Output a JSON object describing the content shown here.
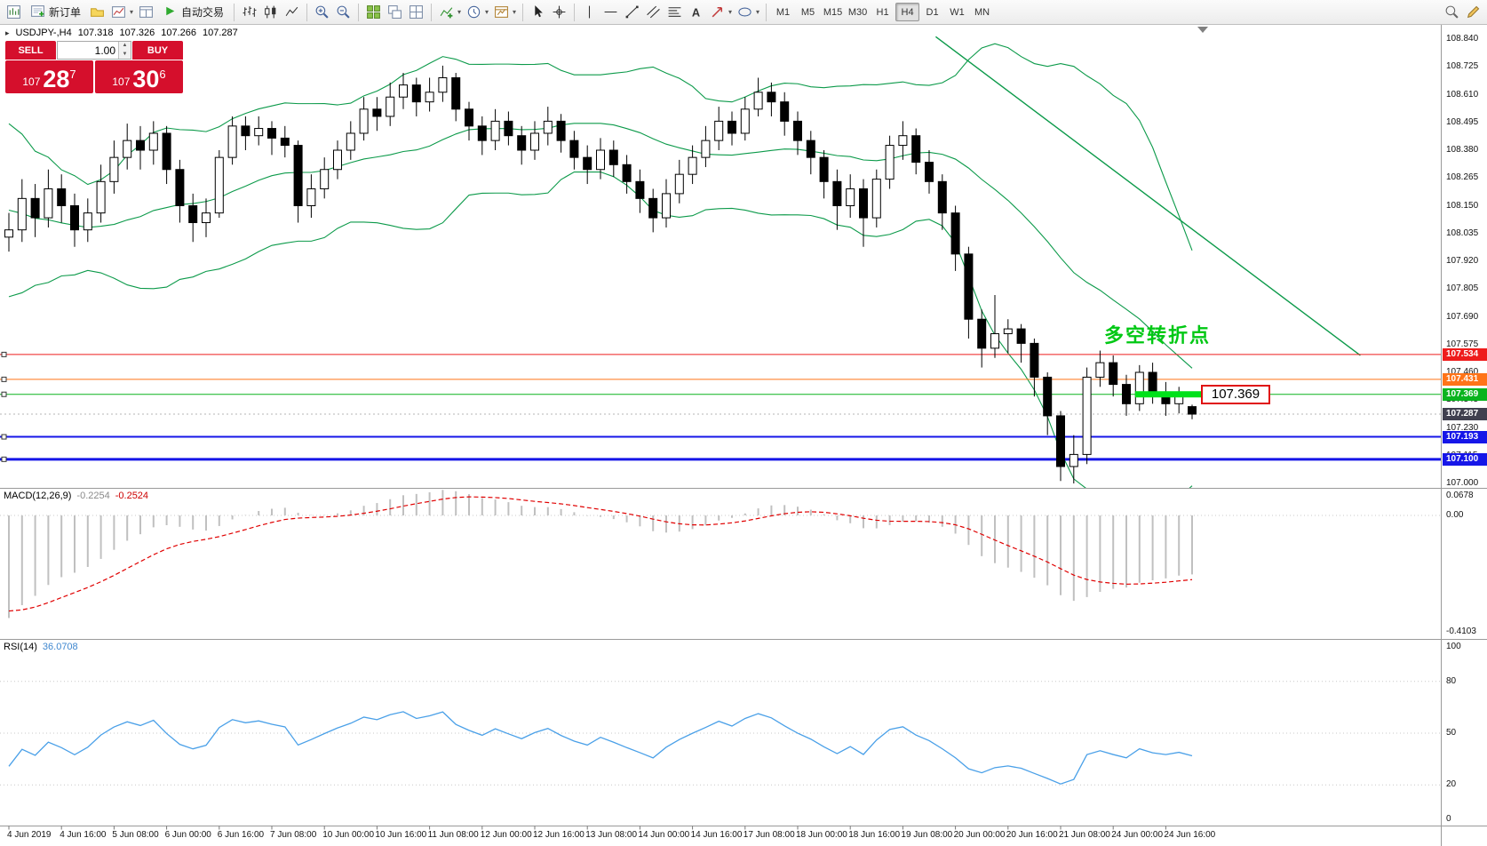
{
  "toolbar": {
    "new_order_label": "新订单",
    "auto_trading_label": "自动交易",
    "timeframes": [
      "M1",
      "M5",
      "M15",
      "M30",
      "H1",
      "H4",
      "D1",
      "W1",
      "MN"
    ],
    "active_timeframe": "H4",
    "items": [
      {
        "type": "icon",
        "name": "new-chart"
      },
      {
        "type": "button",
        "name": "new-order",
        "icon": "order-ticket",
        "label_key": "new_order_label"
      },
      {
        "type": "icon",
        "name": "profiles"
      },
      {
        "type": "icon",
        "name": "charts-window",
        "caret": true
      },
      {
        "type": "icon",
        "name": "data-window"
      },
      {
        "type": "button",
        "name": "auto-trading",
        "icon": "play",
        "label_key": "auto_trading_label"
      },
      {
        "type": "sep"
      },
      {
        "type": "icon",
        "name": "bar-chart"
      },
      {
        "type": "icon",
        "name": "candlestick-chart"
      },
      {
        "type": "icon",
        "name": "line-chart"
      },
      {
        "type": "sep"
      },
      {
        "type": "icon",
        "name": "zoom-in"
      },
      {
        "type": "icon",
        "name": "zoom-out"
      },
      {
        "type": "sep"
      },
      {
        "type": "icon",
        "name": "tile-windows"
      },
      {
        "type": "icon",
        "name": "cascade-windows"
      },
      {
        "type": "icon",
        "name": "arrange-windows"
      },
      {
        "type": "sep"
      },
      {
        "type": "icon",
        "name": "indicators",
        "caret": true
      },
      {
        "type": "icon",
        "name": "periods",
        "caret": true
      },
      {
        "type": "icon",
        "name": "templates",
        "caret": true
      },
      {
        "type": "sep"
      },
      {
        "type": "icon",
        "name": "cursor"
      },
      {
        "type": "icon",
        "name": "crosshair"
      },
      {
        "type": "sep"
      },
      {
        "type": "icon",
        "name": "vertical-line"
      },
      {
        "type": "icon",
        "name": "horizontal-line"
      },
      {
        "type": "icon",
        "name": "trendline"
      },
      {
        "type": "icon",
        "name": "equidistant-channel"
      },
      {
        "type": "icon",
        "name": "fibonacci"
      },
      {
        "type": "icon",
        "name": "text-label"
      },
      {
        "type": "icon",
        "name": "arrows",
        "caret": true
      },
      {
        "type": "icon",
        "name": "shapes",
        "caret": true
      },
      {
        "type": "sep"
      },
      {
        "type": "timeframes"
      },
      {
        "type": "spacer"
      },
      {
        "type": "icon",
        "name": "search"
      },
      {
        "type": "icon",
        "name": "edit"
      }
    ]
  },
  "trade_panel": {
    "sell_label": "SELL",
    "buy_label": "BUY",
    "volume": "1.00",
    "sell_whole": "107",
    "sell_big": "28",
    "sell_sup": "7",
    "buy_whole": "107",
    "buy_big": "30",
    "buy_sup": "6",
    "accent_color": "#d50f2c"
  },
  "symbol_info": {
    "symbol": "USDJPY-,H4",
    "open": "107.318",
    "high": "107.326",
    "low": "107.266",
    "close": "107.287"
  },
  "annotation": {
    "text": "多空转折点",
    "color": "#00c814"
  },
  "price_box_label": "107.369",
  "chart_data": {
    "type": "candlestick-ohlc",
    "symbol": "USDJPY",
    "timeframe": "H4",
    "price_axis": [
      "108.840",
      "108.725",
      "108.610",
      "108.495",
      "108.380",
      "108.265",
      "108.150",
      "108.035",
      "107.920",
      "107.805",
      "107.690",
      "107.575",
      "107.460",
      "107.345",
      "107.230",
      "107.115",
      "107.000"
    ],
    "time_labels": [
      "4 Jun 2019",
      "4 Jun 16:00",
      "5 Jun 08:00",
      "6 Jun 00:00",
      "6 Jun 16:00",
      "7 Jun 08:00",
      "10 Jun 00:00",
      "10 Jun 16:00",
      "11 Jun 08:00",
      "12 Jun 00:00",
      "12 Jun 16:00",
      "13 Jun 08:00",
      "14 Jun 00:00",
      "14 Jun 16:00",
      "17 Jun 08:00",
      "18 Jun 00:00",
      "18 Jun 16:00",
      "19 Jun 08:00",
      "20 Jun 00:00",
      "20 Jun 16:00",
      "21 Jun 08:00",
      "24 Jun 00:00",
      "24 Jun 16:00"
    ],
    "label_every": 4,
    "candles": [
      [
        108.02,
        108.12,
        107.96,
        108.05
      ],
      [
        108.05,
        108.26,
        108.0,
        108.18
      ],
      [
        108.18,
        108.24,
        108.02,
        108.1
      ],
      [
        108.1,
        108.3,
        108.06,
        108.22
      ],
      [
        108.22,
        108.28,
        108.08,
        108.15
      ],
      [
        108.15,
        108.2,
        107.98,
        108.05
      ],
      [
        108.05,
        108.18,
        108.0,
        108.12
      ],
      [
        108.12,
        108.32,
        108.08,
        108.25
      ],
      [
        108.25,
        108.42,
        108.2,
        108.35
      ],
      [
        108.35,
        108.49,
        108.3,
        108.42
      ],
      [
        108.42,
        108.48,
        108.3,
        108.38
      ],
      [
        108.38,
        108.5,
        108.32,
        108.45
      ],
      [
        108.45,
        108.48,
        108.24,
        108.3
      ],
      [
        108.3,
        108.34,
        108.08,
        108.15
      ],
      [
        108.15,
        108.2,
        108.0,
        108.08
      ],
      [
        108.08,
        108.18,
        108.02,
        108.12
      ],
      [
        108.12,
        108.38,
        108.1,
        108.35
      ],
      [
        108.35,
        108.52,
        108.32,
        108.48
      ],
      [
        108.48,
        108.52,
        108.38,
        108.44
      ],
      [
        108.44,
        108.52,
        108.4,
        108.47
      ],
      [
        108.47,
        108.5,
        108.36,
        108.43
      ],
      [
        108.43,
        108.48,
        108.35,
        108.4
      ],
      [
        108.4,
        108.42,
        108.08,
        108.15
      ],
      [
        108.15,
        108.28,
        108.1,
        108.22
      ],
      [
        108.22,
        108.35,
        108.18,
        108.3
      ],
      [
        108.3,
        108.42,
        108.26,
        108.38
      ],
      [
        108.38,
        108.5,
        108.34,
        108.45
      ],
      [
        108.45,
        108.6,
        108.42,
        108.55
      ],
      [
        108.55,
        108.6,
        108.46,
        108.52
      ],
      [
        108.52,
        108.66,
        108.48,
        108.6
      ],
      [
        108.6,
        108.7,
        108.55,
        108.65
      ],
      [
        108.65,
        108.68,
        108.52,
        108.58
      ],
      [
        108.58,
        108.68,
        108.54,
        108.62
      ],
      [
        108.62,
        108.73,
        108.58,
        108.68
      ],
      [
        108.68,
        108.7,
        108.5,
        108.55
      ],
      [
        108.55,
        108.58,
        108.42,
        108.48
      ],
      [
        108.48,
        108.52,
        108.36,
        108.42
      ],
      [
        108.42,
        108.55,
        108.38,
        108.5
      ],
      [
        108.5,
        108.54,
        108.4,
        108.44
      ],
      [
        108.44,
        108.48,
        108.32,
        108.38
      ],
      [
        108.38,
        108.5,
        108.34,
        108.45
      ],
      [
        108.45,
        108.56,
        108.4,
        108.5
      ],
      [
        108.5,
        108.53,
        108.37,
        108.42
      ],
      [
        108.42,
        108.46,
        108.3,
        108.35
      ],
      [
        108.35,
        108.4,
        108.24,
        108.3
      ],
      [
        108.3,
        108.43,
        108.26,
        108.38
      ],
      [
        108.38,
        108.42,
        108.27,
        108.32
      ],
      [
        108.32,
        108.36,
        108.2,
        108.25
      ],
      [
        108.25,
        108.3,
        108.12,
        108.18
      ],
      [
        108.18,
        108.22,
        108.04,
        108.1
      ],
      [
        108.1,
        108.26,
        108.06,
        108.2
      ],
      [
        108.2,
        108.34,
        108.16,
        108.28
      ],
      [
        108.28,
        108.4,
        108.24,
        108.35
      ],
      [
        108.35,
        108.48,
        108.31,
        108.42
      ],
      [
        108.42,
        108.56,
        108.38,
        108.5
      ],
      [
        108.5,
        108.54,
        108.4,
        108.45
      ],
      [
        108.45,
        108.6,
        108.42,
        108.55
      ],
      [
        108.55,
        108.68,
        108.52,
        108.62
      ],
      [
        108.62,
        108.66,
        108.52,
        108.58
      ],
      [
        108.58,
        108.62,
        108.44,
        108.5
      ],
      [
        108.5,
        108.54,
        108.36,
        108.42
      ],
      [
        108.42,
        108.46,
        108.28,
        108.35
      ],
      [
        108.35,
        108.38,
        108.18,
        108.25
      ],
      [
        108.25,
        108.3,
        108.05,
        108.15
      ],
      [
        108.15,
        108.28,
        108.1,
        108.22
      ],
      [
        108.22,
        108.26,
        107.98,
        108.1
      ],
      [
        108.1,
        108.3,
        108.06,
        108.26
      ],
      [
        108.26,
        108.44,
        108.22,
        108.4
      ],
      [
        108.4,
        108.5,
        108.34,
        108.44
      ],
      [
        108.44,
        108.47,
        108.28,
        108.33
      ],
      [
        108.33,
        108.38,
        108.2,
        108.25
      ],
      [
        108.25,
        108.28,
        108.05,
        108.12
      ],
      [
        108.12,
        108.15,
        107.88,
        107.95
      ],
      [
        107.95,
        107.98,
        107.6,
        107.68
      ],
      [
        107.68,
        107.72,
        107.48,
        107.56
      ],
      [
        107.56,
        107.78,
        107.52,
        107.62
      ],
      [
        107.62,
        107.68,
        107.54,
        107.64
      ],
      [
        107.64,
        107.66,
        107.5,
        107.58
      ],
      [
        107.58,
        107.6,
        107.36,
        107.44
      ],
      [
        107.44,
        107.46,
        107.2,
        107.28
      ],
      [
        107.28,
        107.3,
        107.01,
        107.07
      ],
      [
        107.07,
        107.2,
        107.0,
        107.12
      ],
      [
        107.12,
        107.48,
        107.08,
        107.44
      ],
      [
        107.44,
        107.55,
        107.4,
        107.5
      ],
      [
        107.5,
        107.53,
        107.36,
        107.41
      ],
      [
        107.41,
        107.45,
        107.28,
        107.33
      ],
      [
        107.33,
        107.49,
        107.3,
        107.46
      ],
      [
        107.46,
        107.5,
        107.33,
        107.37
      ],
      [
        107.37,
        107.42,
        107.28,
        107.33
      ],
      [
        107.33,
        107.4,
        107.29,
        107.36
      ],
      [
        107.318,
        107.326,
        107.266,
        107.287
      ]
    ],
    "seed_closes": [
      108.55,
      108.45,
      108.5,
      108.35,
      108.4,
      108.25,
      108.3,
      108.15,
      108.2,
      108.05,
      108.1,
      107.95,
      108.05,
      107.9,
      108.0,
      107.95,
      108.05,
      107.95,
      108.0,
      107.98
    ],
    "lines": [
      {
        "price": 107.534,
        "color": "#ee1c1c",
        "width": 1,
        "tag": "107.534",
        "tag_bg": "#ee1c1c"
      },
      {
        "price": 107.431,
        "color": "#ff7418",
        "width": 1,
        "tag": "107.431",
        "tag_bg": "#ff7418"
      },
      {
        "price": 107.369,
        "color": "#0ab41e",
        "width": 1,
        "tag": "107.369",
        "tag_bg": "#0ab41e"
      },
      {
        "price": 107.193,
        "color": "#1616e8",
        "width": 2,
        "tag": "107.193",
        "tag_bg": "#1616e8"
      },
      {
        "price": 107.1,
        "color": "#1616e8",
        "width": 3,
        "tag": "107.100",
        "tag_bg": "#1616e8"
      }
    ],
    "bid": {
      "price": 107.287,
      "tag": "107.287",
      "tag_bg": "#40404f"
    },
    "highlight_segment": {
      "price": 107.369,
      "bar_start": 86,
      "bar_end": 90.8,
      "color": "#00e11a",
      "thickness": 7
    },
    "trendline": {
      "bar1": 70.5,
      "price1": 108.85,
      "bar2": 102.8,
      "price2": 107.53,
      "color": "#0c9a4a"
    },
    "indicators": {
      "bollinger": {
        "period": 20,
        "deviation": 2,
        "color": "#0c9a4a"
      },
      "macd": {
        "name": "MACD(12,26,9)",
        "main_value": "-0.2254",
        "signal_value": "-0.2524",
        "axis": [
          "0.0678",
          "0.00",
          "-0.4103"
        ],
        "hist_color": "#c0c0c0",
        "signal_color": "#e00000"
      },
      "rsi": {
        "name": "RSI(14)",
        "value": "36.0708",
        "axis": [
          "100",
          "80",
          "50",
          "20",
          "0"
        ],
        "levels": [
          80,
          50,
          20
        ],
        "color": "#4aa0e8"
      }
    }
  }
}
